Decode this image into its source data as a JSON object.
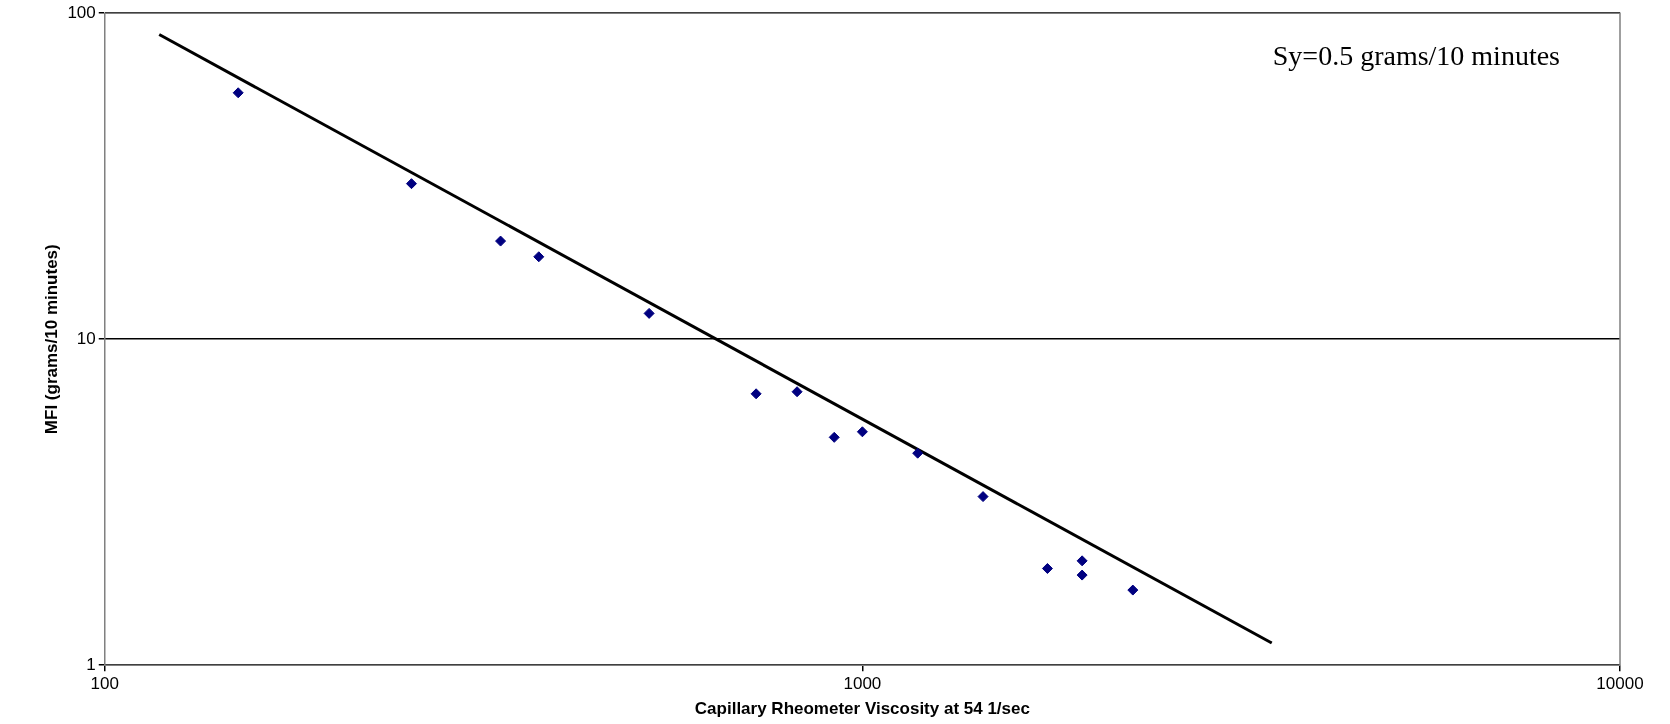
{
  "chart_data": {
    "type": "scatter",
    "xlabel": "Capillary Rheometer Viscosity at 54 1/sec",
    "ylabel": "MFI (grams/10 minutes)",
    "annotations": [
      "Sy=0.5 grams/10 minutes"
    ],
    "log": "xy",
    "xlim": [
      100,
      10000
    ],
    "xticks": [
      100,
      1000,
      10000
    ],
    "ylim": [
      1,
      100
    ],
    "yticks": [
      1,
      10,
      100
    ],
    "grid": "y",
    "legend": false,
    "marker": "diamond",
    "series": [
      {
        "color": "#000080",
        "x": [
          150,
          254,
          333,
          374,
          523,
          724,
          820,
          918,
          1000,
          1183,
          1443,
          1755,
          1950,
          1950,
          2275
        ],
        "values": [
          57,
          30,
          20,
          17.9,
          12,
          6.8,
          6.9,
          5,
          5.2,
          4.47,
          3.29,
          1.98,
          2.09,
          1.89,
          1.7
        ]
      },
      {
        "type": "line",
        "color": "#000000",
        "marker": "none",
        "line_style": "solid",
        "x": [
          118,
          3470
        ],
        "values": [
          86,
          1.17
        ]
      }
    ]
  }
}
